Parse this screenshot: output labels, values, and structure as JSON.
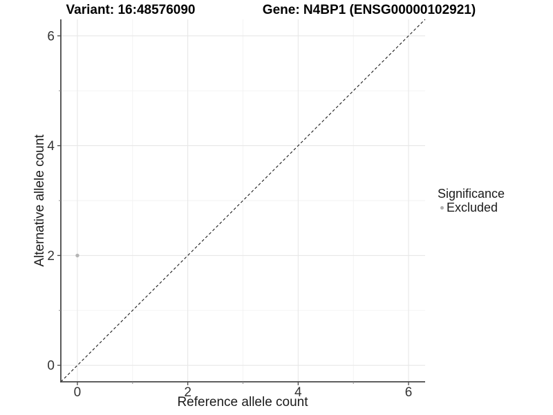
{
  "titles": {
    "left": "Variant: 16:48576090",
    "right": "Gene: N4BP1 (ENSG00000102921)"
  },
  "chart_data": {
    "type": "scatter",
    "xlabel": "Reference allele count",
    "ylabel": "Alternative allele count",
    "xlim": [
      -0.3,
      6.3
    ],
    "ylim": [
      -0.3,
      6.3
    ],
    "xticks": {
      "major": [
        0,
        2,
        4,
        6
      ],
      "minor": [
        1,
        3,
        5
      ]
    },
    "yticks": {
      "major": [
        0,
        2,
        4,
        6
      ],
      "minor": [
        1,
        3,
        5
      ]
    },
    "grid": true,
    "points": [
      {
        "x": 0,
        "y": 2,
        "series": "Excluded"
      }
    ],
    "reference_line": {
      "type": "identity",
      "from": [
        -0.3,
        -0.3
      ],
      "to": [
        6.3,
        6.3
      ],
      "style": "dashed",
      "color": "#1a1a1a"
    },
    "legend": {
      "title": "Significance",
      "position": "right",
      "entries": [
        {
          "label": "Excluded",
          "color": "#aeaeae",
          "marker": "circle"
        }
      ]
    },
    "colors": {
      "point": "#b5b5b5",
      "grid_major": "#e7e7e7",
      "grid_minor": "#f2f2f2",
      "axis_line": "#474747",
      "tick_major": "#474747",
      "tick_minor": "#8c8c8c",
      "tick_label": "#333333"
    }
  }
}
